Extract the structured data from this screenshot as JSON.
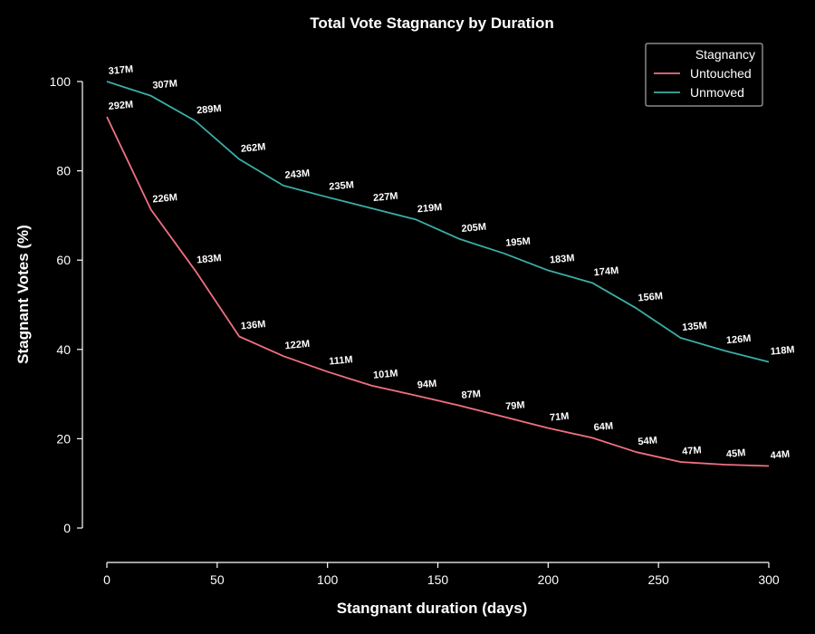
{
  "chart_data": {
    "type": "line",
    "title": "Total Vote Stagnancy by Duration",
    "xlabel": "Stangnant duration (days)",
    "ylabel": "Stagnant Votes (%)",
    "xlim": [
      0,
      300
    ],
    "ylim": [
      0,
      100
    ],
    "xticks": [
      0,
      50,
      100,
      150,
      200,
      250,
      300
    ],
    "yticks": [
      0,
      20,
      40,
      60,
      80,
      100
    ],
    "grid": false,
    "legend": {
      "title": "Stagnancy",
      "placement": "top-right"
    },
    "x": [
      0,
      20,
      40,
      60,
      80,
      100,
      120,
      140,
      160,
      180,
      200,
      220,
      240,
      260,
      280,
      300
    ],
    "series": [
      {
        "name": "Untouched",
        "color": "#f07080",
        "values": [
          92.1,
          71.3,
          57.7,
          42.9,
          38.5,
          35.0,
          31.9,
          29.7,
          27.4,
          24.9,
          22.4,
          20.2,
          17.0,
          14.8,
          14.2,
          13.9
        ],
        "labels": [
          "292M",
          "226M",
          "183M",
          "136M",
          "122M",
          "111M",
          "101M",
          "94M",
          "87M",
          "79M",
          "71M",
          "64M",
          "54M",
          "47M",
          "45M",
          "44M"
        ]
      },
      {
        "name": "Unmoved",
        "color": "#3aaea6",
        "values": [
          100.0,
          96.8,
          91.2,
          82.6,
          76.7,
          74.1,
          71.6,
          69.1,
          64.7,
          61.5,
          57.7,
          54.9,
          49.2,
          42.6,
          39.7,
          37.2
        ],
        "labels": [
          "317M",
          "307M",
          "289M",
          "262M",
          "243M",
          "235M",
          "227M",
          "219M",
          "205M",
          "195M",
          "183M",
          "174M",
          "156M",
          "135M",
          "126M",
          "118M"
        ]
      }
    ]
  }
}
